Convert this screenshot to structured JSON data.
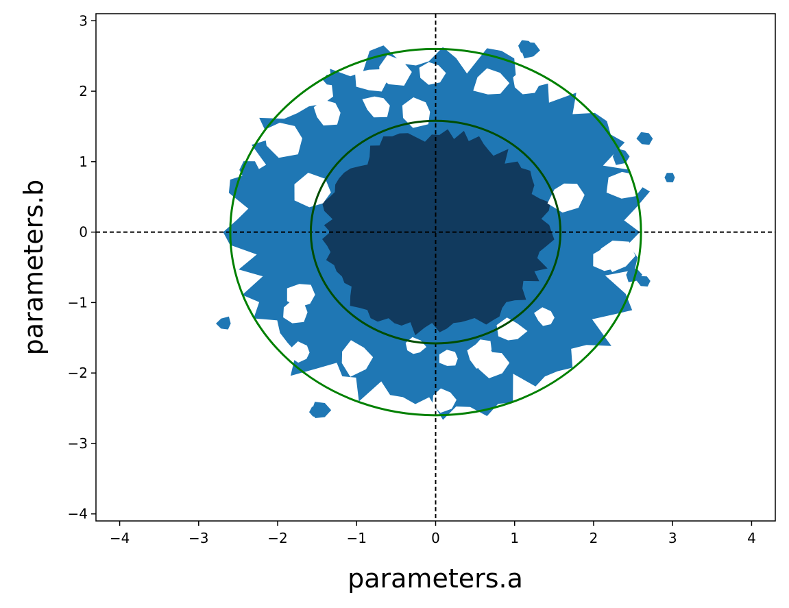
{
  "chart_data": {
    "type": "contour",
    "xlabel": "parameters.a",
    "ylabel": "parameters.b",
    "xlim": [
      -4.3,
      4.3
    ],
    "ylim": [
      -4.1,
      3.1
    ],
    "xticks": [
      -4,
      -3,
      -2,
      -1,
      0,
      1,
      2,
      3,
      4
    ],
    "xtick_labels": [
      "−4",
      "−3",
      "−2",
      "−1",
      "0",
      "1",
      "2",
      "3",
      "4"
    ],
    "yticks": [
      -4,
      -3,
      -2,
      -1,
      0,
      1,
      2,
      3
    ],
    "ytick_labels": [
      "−4",
      "−3",
      "−2",
      "−1",
      "0",
      "1",
      "2",
      "3"
    ],
    "reference_lines": {
      "x": 0,
      "y": 0,
      "style": "dashed",
      "color": "#000000"
    },
    "density_levels": [
      {
        "level": "outer",
        "color": "#1f77b4",
        "approx_radius": 2.5
      },
      {
        "level": "inner",
        "color": "#113a5e",
        "approx_radius": 1.4
      }
    ],
    "ellipses": [
      {
        "center": [
          0,
          0
        ],
        "radius_a": 2.6,
        "radius_b": 2.6,
        "color": "#008000"
      },
      {
        "center": [
          0,
          0
        ],
        "radius_a": 1.58,
        "radius_b": 1.58,
        "color": "#004d00"
      }
    ],
    "grid": false,
    "legend": "none"
  }
}
